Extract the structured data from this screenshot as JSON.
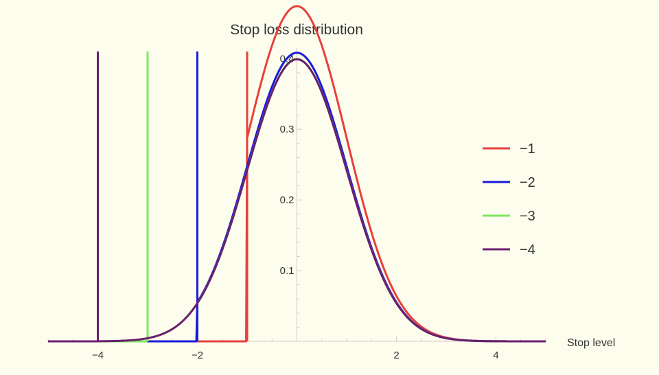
{
  "chart_data": {
    "type": "line",
    "title": "Stop loss distribution",
    "xlabel": "Stop level",
    "ylabel": "",
    "xlim": [
      -5,
      5
    ],
    "ylim": [
      0,
      0.41
    ],
    "x_ticks": [
      -4,
      -2,
      2,
      4
    ],
    "x_tick_labels": [
      "−4",
      "−2",
      "2",
      "4"
    ],
    "y_ticks": [
      0.1,
      0.2,
      0.3,
      0.4
    ],
    "y_tick_labels": [
      "0.1",
      "0.2",
      "0.3",
      "0.4"
    ],
    "legend_position": "right",
    "series": [
      {
        "name": "−1",
        "stop": -1,
        "color": "#e8403a"
      },
      {
        "name": "−2",
        "stop": -2,
        "color": "#1a1adb"
      },
      {
        "name": "−3",
        "stop": -3,
        "color": "#7ee85a"
      },
      {
        "name": "−4",
        "stop": -4,
        "color": "#6a1f6e"
      }
    ]
  }
}
